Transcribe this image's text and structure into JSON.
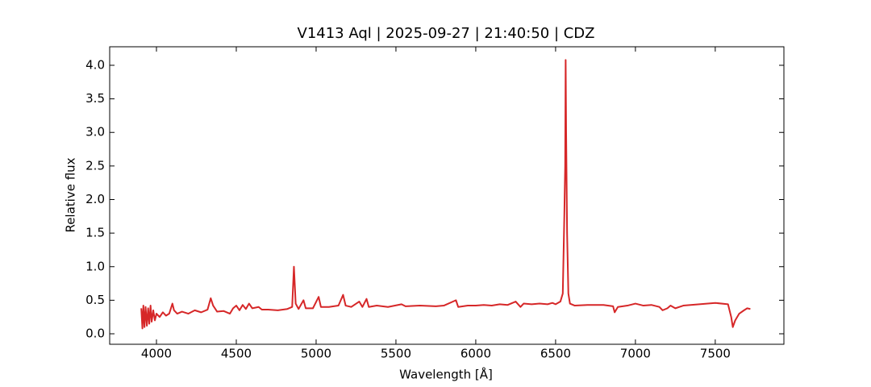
{
  "chart_data": {
    "type": "line",
    "title": "V1413 Aql | 2025-09-27 | 21:40:50 | CDZ",
    "x_label": "Wavelength [Å]",
    "y_label": "Relative flux",
    "xlim": [
      3707,
      7930
    ],
    "ylim": [
      -0.156,
      4.276
    ],
    "xticks": [
      4000,
      4500,
      5000,
      5500,
      6000,
      6500,
      7000,
      7500
    ],
    "yticks": [
      {
        "value": 0,
        "label": "0.0"
      },
      0.5,
      {
        "value": 1,
        "label": "1.0"
      },
      1.5,
      {
        "value": 2,
        "label": "2.0"
      },
      2.5,
      {
        "value": 3,
        "label": "3.0"
      },
      3.5,
      {
        "value": 4,
        "label": "4.0"
      }
    ],
    "series": [
      {
        "name": "V1413 Aql",
        "color": "#d62728",
        "x": [
          3905,
          3912,
          3918,
          3925,
          3932,
          3940,
          3948,
          3955,
          3963,
          3970,
          3980,
          3990,
          4000,
          4020,
          4040,
          4060,
          4080,
          4100,
          4110,
          4130,
          4160,
          4200,
          4240,
          4280,
          4320,
          4340,
          4355,
          4380,
          4420,
          4460,
          4480,
          4500,
          4520,
          4540,
          4560,
          4580,
          4600,
          4640,
          4660,
          4700,
          4760,
          4820,
          4850,
          4861,
          4872,
          4890,
          4921,
          4935,
          4980,
          5016,
          5030,
          5080,
          5140,
          5169,
          5185,
          5220,
          5270,
          5290,
          5316,
          5330,
          5380,
          5450,
          5535,
          5560,
          5650,
          5750,
          5800,
          5876,
          5890,
          5950,
          6000,
          6050,
          6100,
          6150,
          6200,
          6250,
          6280,
          6300,
          6350,
          6400,
          6450,
          6480,
          6500,
          6530,
          6545,
          6555,
          6560,
          6563,
          6566,
          6572,
          6580,
          6590,
          6620,
          6700,
          6800,
          6860,
          6870,
          6890,
          6950,
          7000,
          7050,
          7100,
          7150,
          7170,
          7200,
          7220,
          7250,
          7300,
          7400,
          7500,
          7580,
          7600,
          7610,
          7625,
          7650,
          7680,
          7700,
          7720
        ],
        "values": [
          0.38,
          0.08,
          0.42,
          0.1,
          0.4,
          0.12,
          0.38,
          0.15,
          0.42,
          0.18,
          0.35,
          0.2,
          0.3,
          0.25,
          0.32,
          0.27,
          0.3,
          0.45,
          0.35,
          0.3,
          0.33,
          0.3,
          0.35,
          0.32,
          0.36,
          0.53,
          0.42,
          0.33,
          0.34,
          0.3,
          0.38,
          0.42,
          0.35,
          0.43,
          0.37,
          0.45,
          0.38,
          0.4,
          0.36,
          0.36,
          0.35,
          0.37,
          0.4,
          1.0,
          0.45,
          0.37,
          0.5,
          0.38,
          0.38,
          0.55,
          0.4,
          0.4,
          0.42,
          0.58,
          0.42,
          0.4,
          0.48,
          0.4,
          0.52,
          0.4,
          0.42,
          0.4,
          0.44,
          0.41,
          0.42,
          0.41,
          0.42,
          0.5,
          0.4,
          0.42,
          0.42,
          0.43,
          0.42,
          0.44,
          0.43,
          0.48,
          0.4,
          0.45,
          0.44,
          0.45,
          0.44,
          0.46,
          0.44,
          0.48,
          0.6,
          1.8,
          2.5,
          4.08,
          3.0,
          1.5,
          0.6,
          0.45,
          0.42,
          0.43,
          0.43,
          0.41,
          0.32,
          0.4,
          0.42,
          0.45,
          0.42,
          0.43,
          0.4,
          0.35,
          0.38,
          0.42,
          0.38,
          0.42,
          0.44,
          0.46,
          0.44,
          0.25,
          0.1,
          0.2,
          0.3,
          0.35,
          0.38,
          0.37
        ]
      }
    ]
  }
}
